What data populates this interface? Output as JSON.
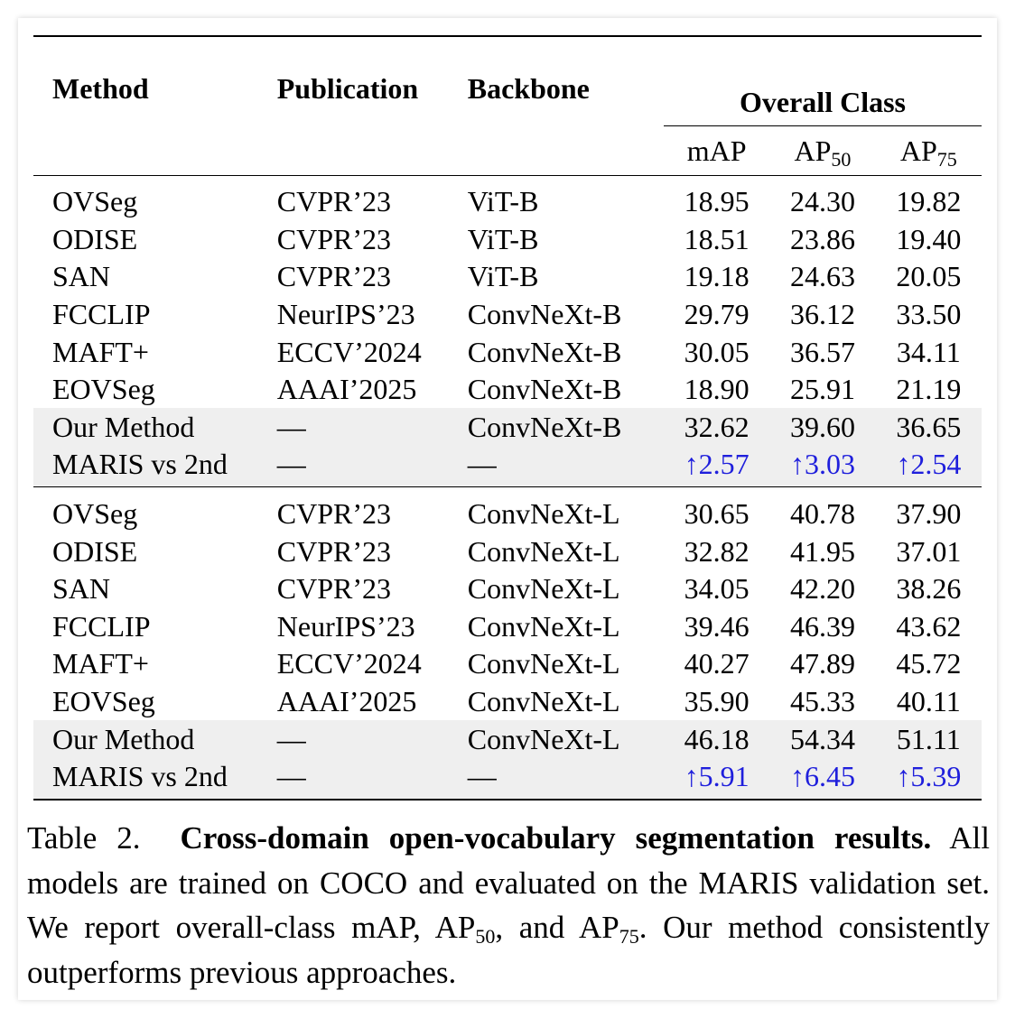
{
  "table": {
    "headers": {
      "method": "Method",
      "publication": "Publication",
      "backbone": "Backbone",
      "group": "Overall Class",
      "map": "mAP",
      "ap50_base": "AP",
      "ap50_sub": "50",
      "ap75_base": "AP",
      "ap75_sub": "75"
    },
    "block1": [
      {
        "method": "OVSeg",
        "pub": "CVPR’23",
        "bb": "ViT-B",
        "map": "18.95",
        "ap50": "24.30",
        "ap75": "19.82"
      },
      {
        "method": "ODISE",
        "pub": "CVPR’23",
        "bb": "ViT-B",
        "map": "18.51",
        "ap50": "23.86",
        "ap75": "19.40"
      },
      {
        "method": "SAN",
        "pub": "CVPR’23",
        "bb": "ViT-B",
        "map": "19.18",
        "ap50": "24.63",
        "ap75": "20.05"
      },
      {
        "method": "FCCLIP",
        "pub": "NeurIPS’23",
        "bb": "ConvNeXt-B",
        "map": "29.79",
        "ap50": "36.12",
        "ap75": "33.50"
      },
      {
        "method": "MAFT+",
        "pub": "ECCV’2024",
        "bb": "ConvNeXt-B",
        "map": "30.05",
        "ap50": "36.57",
        "ap75": "34.11"
      },
      {
        "method": "EOVSeg",
        "pub": "AAAI’2025",
        "bb": "ConvNeXt-B",
        "map": "18.90",
        "ap50": "25.91",
        "ap75": "21.19"
      },
      {
        "method": "Our Method",
        "pub": "—",
        "bb": "ConvNeXt-B",
        "map": "32.62",
        "ap50": "39.60",
        "ap75": "36.65"
      },
      {
        "method": "MARIS vs 2nd",
        "pub": "—",
        "bb": "—",
        "map": "↑2.57",
        "ap50": "↑3.03",
        "ap75": "↑2.54"
      }
    ],
    "block2": [
      {
        "method": "OVSeg",
        "pub": "CVPR’23",
        "bb": "ConvNeXt-L",
        "map": "30.65",
        "ap50": "40.78",
        "ap75": "37.90"
      },
      {
        "method": "ODISE",
        "pub": "CVPR’23",
        "bb": "ConvNeXt-L",
        "map": "32.82",
        "ap50": "41.95",
        "ap75": "37.01"
      },
      {
        "method": "SAN",
        "pub": "CVPR’23",
        "bb": "ConvNeXt-L",
        "map": "34.05",
        "ap50": "42.20",
        "ap75": "38.26"
      },
      {
        "method": "FCCLIP",
        "pub": "NeurIPS’23",
        "bb": "ConvNeXt-L",
        "map": "39.46",
        "ap50": "46.39",
        "ap75": "43.62"
      },
      {
        "method": "MAFT+",
        "pub": "ECCV’2024",
        "bb": "ConvNeXt-L",
        "map": "40.27",
        "ap50": "47.89",
        "ap75": "45.72"
      },
      {
        "method": "EOVSeg",
        "pub": "AAAI’2025",
        "bb": "ConvNeXt-L",
        "map": "35.90",
        "ap50": "45.33",
        "ap75": "40.11"
      },
      {
        "method": "Our Method",
        "pub": "—",
        "bb": "ConvNeXt-L",
        "map": "46.18",
        "ap50": "54.34",
        "ap75": "51.11"
      },
      {
        "method": "MARIS vs 2nd",
        "pub": "—",
        "bb": "—",
        "map": "↑5.91",
        "ap50": "↑6.45",
        "ap75": "↑5.39"
      }
    ]
  },
  "caption": {
    "label": "Table 2.",
    "title": "Cross-domain open-vocabulary segmentation results.",
    "text1": "All models are trained on COCO and evaluated on the MARIS validation set. We report overall-class mAP, AP",
    "sub1": "50",
    "text2": ", and AP",
    "sub2": "75",
    "text3": ". Our method consistently outperforms previous approaches."
  },
  "colors": {
    "gain": "#1f1fdc",
    "highlight": "#efefef"
  }
}
